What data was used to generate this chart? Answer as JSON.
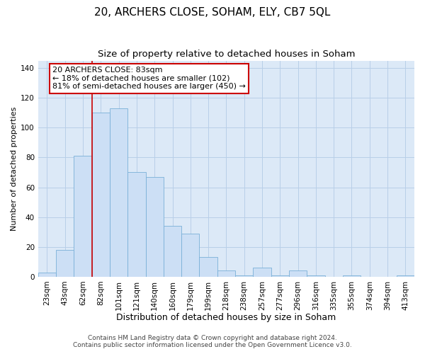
{
  "title": "20, ARCHERS CLOSE, SOHAM, ELY, CB7 5QL",
  "subtitle": "Size of property relative to detached houses in Soham",
  "xlabel": "Distribution of detached houses by size in Soham",
  "ylabel": "Number of detached properties",
  "bar_color": "#ccdff5",
  "bar_edge_color": "#7ab0d8",
  "grid_color": "#b8cfe8",
  "plot_bg_color": "#dce9f7",
  "figure_bg_color": "#ffffff",
  "vline_color": "#cc0000",
  "xlabels": [
    "23sqm",
    "43sqm",
    "62sqm",
    "82sqm",
    "101sqm",
    "121sqm",
    "140sqm",
    "160sqm",
    "179sqm",
    "199sqm",
    "218sqm",
    "238sqm",
    "257sqm",
    "277sqm",
    "296sqm",
    "316sqm",
    "335sqm",
    "355sqm",
    "374sqm",
    "394sqm",
    "413sqm"
  ],
  "bar_heights": [
    3,
    18,
    81,
    110,
    113,
    70,
    67,
    34,
    29,
    13,
    4,
    1,
    6,
    1,
    4,
    1,
    0,
    1,
    0,
    0,
    1
  ],
  "vline_index": 3,
  "ylim": [
    0,
    145
  ],
  "yticks": [
    0,
    20,
    40,
    60,
    80,
    100,
    120,
    140
  ],
  "annotation_text": "20 ARCHERS CLOSE: 83sqm\n← 18% of detached houses are smaller (102)\n81% of semi-detached houses are larger (450) →",
  "annotation_box_color": "#ffffff",
  "annotation_border_color": "#cc0000",
  "footer_line1": "Contains HM Land Registry data © Crown copyright and database right 2024.",
  "footer_line2": "Contains public sector information licensed under the Open Government Licence v3.0.",
  "title_fontsize": 11,
  "subtitle_fontsize": 9.5,
  "xlabel_fontsize": 9,
  "ylabel_fontsize": 8,
  "tick_fontsize": 7.5,
  "annotation_fontsize": 8,
  "footer_fontsize": 6.5
}
